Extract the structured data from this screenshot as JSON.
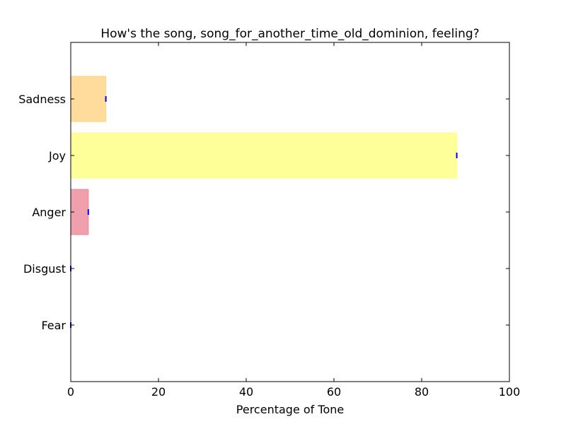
{
  "chart_data": {
    "type": "bar",
    "orientation": "horizontal",
    "title": "How's the song, song_for_another_time_old_dominion, feeling?",
    "xlabel": "Percentage of Tone",
    "ylabel": "",
    "xlim": [
      0,
      100
    ],
    "xticks": [
      0,
      20,
      40,
      60,
      80,
      100
    ],
    "xtick_labels": [
      "0",
      "20",
      "40",
      "60",
      "80",
      "100"
    ],
    "categories": [
      "Fear",
      "Disgust",
      "Anger",
      "Joy",
      "Sadness"
    ],
    "values": [
      0,
      0,
      4,
      88,
      8
    ],
    "colors": [
      "#7cb5ec",
      "#90ed7d",
      "#f0a0ac",
      "#ffff99",
      "#ffdc9c"
    ],
    "bar_edge_colors": [
      "#7cb5ec",
      "#90ed7d",
      "#e8849a",
      "#ffff80",
      "#ffd27a"
    ],
    "error_marker_color": "#0000ff",
    "grid": false,
    "legend": "none"
  }
}
